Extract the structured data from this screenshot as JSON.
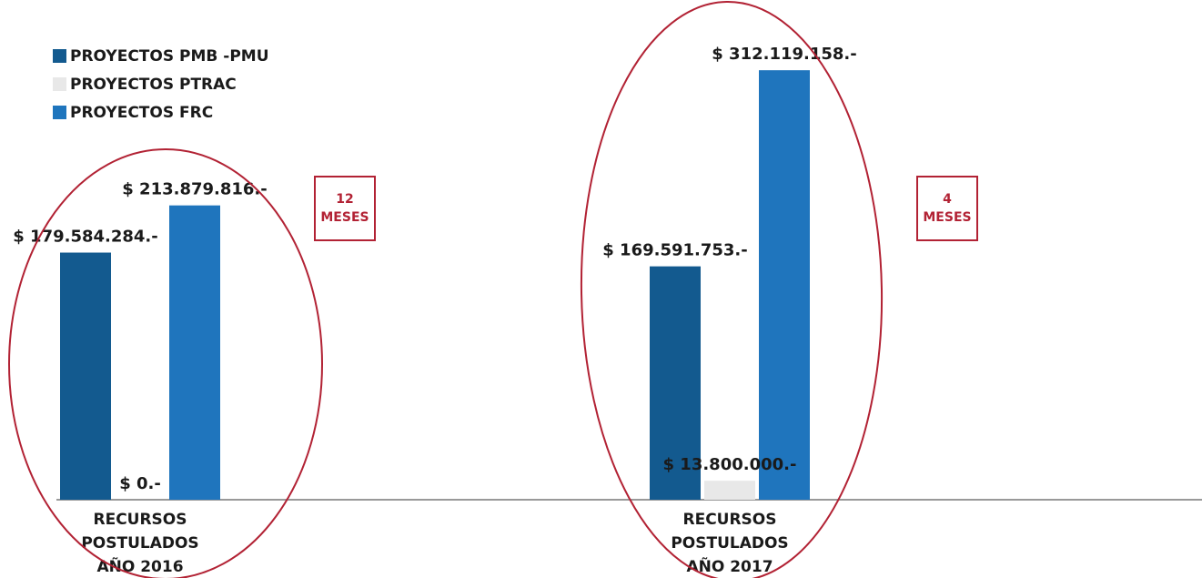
{
  "chart_data": {
    "type": "bar",
    "categories": [
      "RECURSOS POSTULADOS AÑO 2016",
      "RECURSOS POSTULADOS AÑO 2017"
    ],
    "category_lines": [
      [
        "RECURSOS",
        "POSTULADOS",
        "AÑO 2016"
      ],
      [
        "RECURSOS",
        "POSTULADOS",
        "AÑO 2017"
      ]
    ],
    "series": [
      {
        "name": "PROYECTOS PMB -PMU",
        "color": "#135a8f",
        "values": [
          179584284,
          169591753
        ],
        "labels": [
          "$ 179.584.284.-",
          "$ 169.591.753.-"
        ]
      },
      {
        "name": "PROYECTOS PTRAC",
        "color": "#e8e8e8",
        "values": [
          0,
          13800000
        ],
        "labels": [
          "$ 0.-",
          "$ 13.800.000.-"
        ]
      },
      {
        "name": "PROYECTOS FRC",
        "color": "#1f75bd",
        "values": [
          213879816,
          312119158
        ],
        "labels": [
          "$ 213.879.816.-",
          "$ 312.119.158.-"
        ]
      }
    ],
    "ylim": [
      0,
      340000000
    ],
    "grid": false,
    "legend_position": "top-left",
    "axis_color": "#999999",
    "highlight_color": "#b22234"
  },
  "annotations": [
    {
      "number": "12",
      "unit": "MESES"
    },
    {
      "number": "4",
      "unit": "MESES"
    }
  ]
}
